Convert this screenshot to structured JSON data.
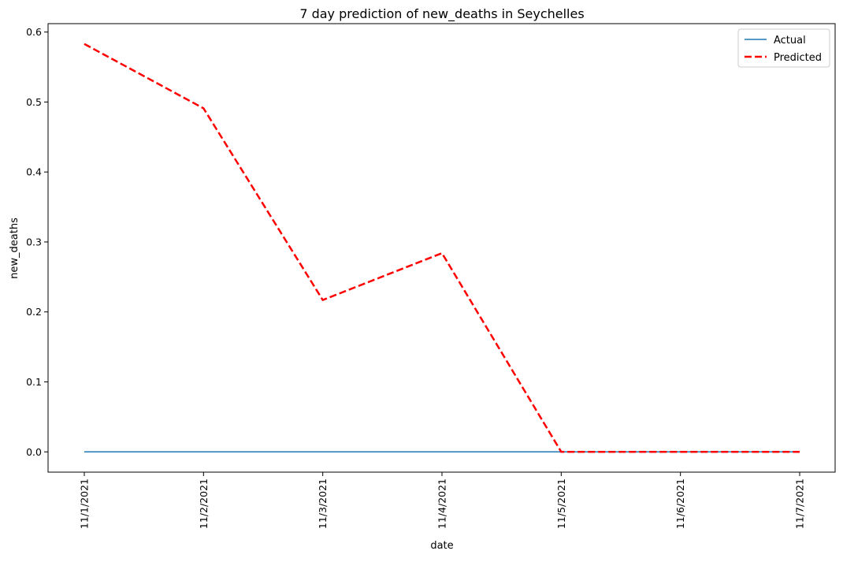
{
  "chart_data": {
    "type": "line",
    "title": "7 day prediction of new_deaths in Seychelles",
    "xlabel": "date",
    "ylabel": "new_deaths",
    "x": [
      "11/1/2021",
      "11/2/2021",
      "11/3/2021",
      "11/4/2021",
      "11/5/2021",
      "11/6/2021",
      "11/7/2021"
    ],
    "ylim": [
      -0.029,
      0.612
    ],
    "yticks": [
      0.0,
      0.1,
      0.2,
      0.3,
      0.4,
      0.5,
      0.6
    ],
    "ytick_labels": [
      "0.0",
      "0.1",
      "0.2",
      "0.3",
      "0.4",
      "0.5",
      "0.6"
    ],
    "grid": false,
    "legend_position": "top-right",
    "series": [
      {
        "name": "Actual",
        "color": "#1f77b4",
        "style": "solid",
        "values": [
          0,
          0,
          0,
          0,
          0,
          0,
          0
        ]
      },
      {
        "name": "Predicted",
        "color": "#ff0000",
        "style": "dashed",
        "values": [
          0.583,
          0.491,
          0.217,
          0.284,
          0.0,
          0.0,
          0.0
        ]
      }
    ]
  }
}
